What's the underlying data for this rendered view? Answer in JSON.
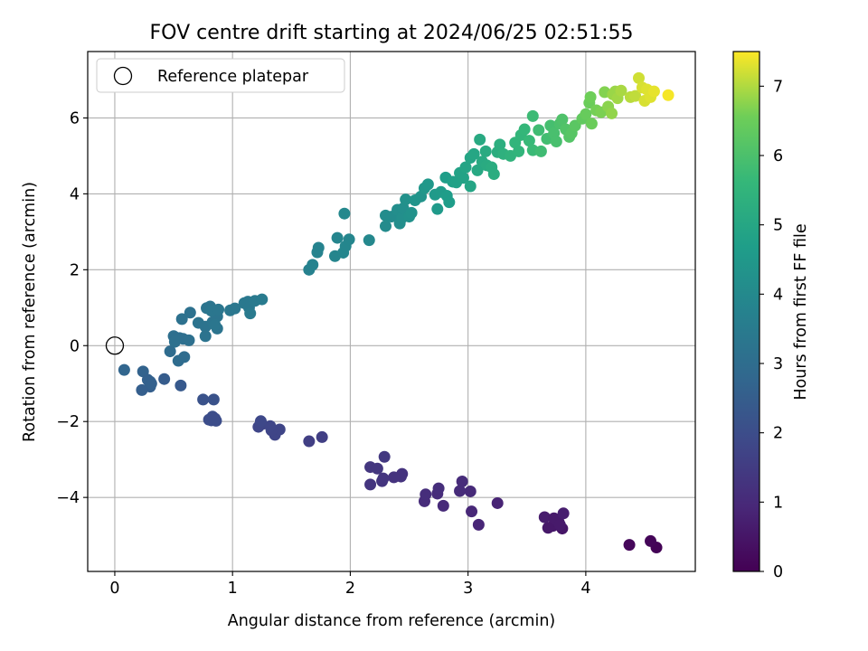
{
  "chart_data": {
    "type": "scatter",
    "title": "FOV centre drift starting at 2024/06/25 02:51:55",
    "xlabel": "Angular distance from reference (arcmin)",
    "ylabel": "Rotation from reference (arcmin)",
    "xlim": [
      -0.23,
      4.93
    ],
    "ylim": [
      -5.95,
      7.75
    ],
    "xticks": [
      0,
      1,
      2,
      3,
      4
    ],
    "yticks": [
      -4,
      -2,
      0,
      2,
      4,
      6
    ],
    "grid": true,
    "legend": {
      "position": "upper-left",
      "entries": [
        "Reference platepar"
      ]
    },
    "reference_point": {
      "x": 0,
      "y": 0
    },
    "colorbar": {
      "label": "Hours from first FF file",
      "colormap": "viridis",
      "range": [
        0,
        7.5
      ],
      "ticks": [
        0,
        1,
        2,
        3,
        4,
        5,
        6,
        7
      ]
    },
    "series": [
      {
        "name": "",
        "points": [
          {
            "x": 4.6,
            "y": -5.32,
            "c": 0.05
          },
          {
            "x": 4.55,
            "y": -5.15,
            "c": 0.1
          },
          {
            "x": 4.37,
            "y": -5.25,
            "c": 0.15
          },
          {
            "x": 3.8,
            "y": -4.82,
            "c": 0.5
          },
          {
            "x": 3.72,
            "y": -4.75,
            "c": 0.55
          },
          {
            "x": 3.77,
            "y": -4.65,
            "c": 0.6
          },
          {
            "x": 3.68,
            "y": -4.8,
            "c": 0.55
          },
          {
            "x": 3.65,
            "y": -4.52,
            "c": 0.65
          },
          {
            "x": 3.73,
            "y": -4.55,
            "c": 0.6
          },
          {
            "x": 3.81,
            "y": -4.42,
            "c": 0.7
          },
          {
            "x": 3.78,
            "y": -4.72,
            "c": 0.6
          },
          {
            "x": 3.09,
            "y": -4.72,
            "c": 0.9
          },
          {
            "x": 3.03,
            "y": -4.37,
            "c": 0.95
          },
          {
            "x": 3.25,
            "y": -4.15,
            "c": 0.85
          },
          {
            "x": 3.02,
            "y": -3.84,
            "c": 1.0
          },
          {
            "x": 2.93,
            "y": -3.83,
            "c": 1.05
          },
          {
            "x": 2.95,
            "y": -3.58,
            "c": 1.05
          },
          {
            "x": 2.79,
            "y": -4.22,
            "c": 1.0
          },
          {
            "x": 2.74,
            "y": -3.9,
            "c": 1.05
          },
          {
            "x": 2.75,
            "y": -3.76,
            "c": 1.1
          },
          {
            "x": 2.63,
            "y": -4.1,
            "c": 1.05
          },
          {
            "x": 2.64,
            "y": -3.92,
            "c": 1.1
          },
          {
            "x": 2.44,
            "y": -3.38,
            "c": 1.25
          },
          {
            "x": 2.43,
            "y": -3.45,
            "c": 1.25
          },
          {
            "x": 2.37,
            "y": -3.47,
            "c": 1.25
          },
          {
            "x": 2.27,
            "y": -3.57,
            "c": 1.3
          },
          {
            "x": 2.17,
            "y": -3.66,
            "c": 1.3
          },
          {
            "x": 2.28,
            "y": -3.5,
            "c": 1.3
          },
          {
            "x": 2.17,
            "y": -3.2,
            "c": 1.35
          },
          {
            "x": 2.23,
            "y": -3.24,
            "c": 1.35
          },
          {
            "x": 2.29,
            "y": -2.93,
            "c": 1.4
          },
          {
            "x": 1.76,
            "y": -2.41,
            "c": 1.6
          },
          {
            "x": 1.65,
            "y": -2.52,
            "c": 1.6
          },
          {
            "x": 1.36,
            "y": -2.35,
            "c": 1.75
          },
          {
            "x": 1.4,
            "y": -2.21,
            "c": 1.75
          },
          {
            "x": 1.33,
            "y": -2.23,
            "c": 1.75
          },
          {
            "x": 1.32,
            "y": -2.12,
            "c": 1.8
          },
          {
            "x": 1.25,
            "y": -2.07,
            "c": 1.8
          },
          {
            "x": 1.22,
            "y": -2.14,
            "c": 1.8
          },
          {
            "x": 1.24,
            "y": -1.99,
            "c": 1.85
          },
          {
            "x": 0.86,
            "y": -1.98,
            "c": 2.0
          },
          {
            "x": 0.82,
            "y": -1.97,
            "c": 2.0
          },
          {
            "x": 0.83,
            "y": -1.87,
            "c": 2.05
          },
          {
            "x": 0.8,
            "y": -1.95,
            "c": 2.0
          },
          {
            "x": 0.85,
            "y": -1.92,
            "c": 2.0
          },
          {
            "x": 0.84,
            "y": -1.42,
            "c": 2.15
          },
          {
            "x": 0.75,
            "y": -1.42,
            "c": 2.15
          },
          {
            "x": 0.56,
            "y": -1.05,
            "c": 2.35
          },
          {
            "x": 0.42,
            "y": -0.88,
            "c": 2.45
          },
          {
            "x": 0.3,
            "y": -1.08,
            "c": 2.55
          },
          {
            "x": 0.23,
            "y": -1.17,
            "c": 2.55
          },
          {
            "x": 0.3,
            "y": -0.95,
            "c": 2.6
          },
          {
            "x": 0.24,
            "y": -0.68,
            "c": 2.65
          },
          {
            "x": 0.28,
            "y": -0.9,
            "c": 2.6
          },
          {
            "x": 0.31,
            "y": -1.0,
            "c": 2.6
          },
          {
            "x": 0.08,
            "y": -0.64,
            "c": 2.75
          },
          {
            "x": 0.47,
            "y": -0.15,
            "c": 2.95
          },
          {
            "x": 0.54,
            "y": -0.4,
            "c": 2.95
          },
          {
            "x": 0.59,
            "y": -0.3,
            "c": 2.95
          },
          {
            "x": 0.55,
            "y": 0.2,
            "c": 3.05
          },
          {
            "x": 0.5,
            "y": 0.25,
            "c": 3.05
          },
          {
            "x": 0.58,
            "y": 0.18,
            "c": 3.05
          },
          {
            "x": 0.63,
            "y": 0.14,
            "c": 3.1
          },
          {
            "x": 0.51,
            "y": 0.1,
            "c": 3.1
          },
          {
            "x": 0.57,
            "y": 0.7,
            "c": 3.15
          },
          {
            "x": 0.64,
            "y": 0.87,
            "c": 3.15
          },
          {
            "x": 0.71,
            "y": 0.6,
            "c": 3.2
          },
          {
            "x": 0.77,
            "y": 0.5,
            "c": 3.2
          },
          {
            "x": 0.78,
            "y": 0.99,
            "c": 3.25
          },
          {
            "x": 0.81,
            "y": 1.03,
            "c": 3.25
          },
          {
            "x": 0.77,
            "y": 0.25,
            "c": 3.2
          },
          {
            "x": 0.83,
            "y": 0.62,
            "c": 3.25
          },
          {
            "x": 0.87,
            "y": 0.77,
            "c": 3.25
          },
          {
            "x": 0.87,
            "y": 0.45,
            "c": 3.25
          },
          {
            "x": 0.82,
            "y": 0.92,
            "c": 3.3
          },
          {
            "x": 0.85,
            "y": 0.55,
            "c": 3.3
          },
          {
            "x": 0.88,
            "y": 0.95,
            "c": 3.3
          },
          {
            "x": 0.98,
            "y": 0.93,
            "c": 3.35
          },
          {
            "x": 1.02,
            "y": 0.98,
            "c": 3.35
          },
          {
            "x": 1.1,
            "y": 1.12,
            "c": 3.4
          },
          {
            "x": 1.13,
            "y": 1.16,
            "c": 3.4
          },
          {
            "x": 1.14,
            "y": 1.0,
            "c": 3.4
          },
          {
            "x": 1.15,
            "y": 0.85,
            "c": 3.45
          },
          {
            "x": 1.19,
            "y": 1.18,
            "c": 3.45
          },
          {
            "x": 1.25,
            "y": 1.22,
            "c": 3.5
          },
          {
            "x": 1.65,
            "y": 2.0,
            "c": 3.7
          },
          {
            "x": 1.68,
            "y": 2.13,
            "c": 3.75
          },
          {
            "x": 1.72,
            "y": 2.46,
            "c": 3.8
          },
          {
            "x": 1.73,
            "y": 2.58,
            "c": 3.8
          },
          {
            "x": 1.87,
            "y": 2.36,
            "c": 3.85
          },
          {
            "x": 1.89,
            "y": 2.84,
            "c": 3.85
          },
          {
            "x": 1.94,
            "y": 2.45,
            "c": 3.9
          },
          {
            "x": 1.96,
            "y": 2.62,
            "c": 3.9
          },
          {
            "x": 1.99,
            "y": 2.8,
            "c": 3.9
          },
          {
            "x": 1.95,
            "y": 3.48,
            "c": 3.95
          },
          {
            "x": 2.16,
            "y": 2.78,
            "c": 3.95
          },
          {
            "x": 2.3,
            "y": 3.15,
            "c": 4.05
          },
          {
            "x": 2.3,
            "y": 3.43,
            "c": 4.1
          },
          {
            "x": 2.35,
            "y": 3.4,
            "c": 4.1
          },
          {
            "x": 2.4,
            "y": 3.58,
            "c": 4.15
          },
          {
            "x": 2.42,
            "y": 3.22,
            "c": 4.15
          },
          {
            "x": 2.44,
            "y": 3.37,
            "c": 4.2
          },
          {
            "x": 2.45,
            "y": 3.62,
            "c": 4.2
          },
          {
            "x": 2.47,
            "y": 3.85,
            "c": 4.25
          },
          {
            "x": 2.5,
            "y": 3.4,
            "c": 4.25
          },
          {
            "x": 2.52,
            "y": 3.5,
            "c": 4.3
          },
          {
            "x": 2.55,
            "y": 3.83,
            "c": 4.35
          },
          {
            "x": 2.6,
            "y": 3.93,
            "c": 4.35
          },
          {
            "x": 2.63,
            "y": 4.15,
            "c": 4.45
          },
          {
            "x": 2.66,
            "y": 4.25,
            "c": 4.5
          },
          {
            "x": 2.72,
            "y": 3.98,
            "c": 4.55
          },
          {
            "x": 2.74,
            "y": 3.6,
            "c": 4.55
          },
          {
            "x": 2.77,
            "y": 4.05,
            "c": 4.6
          },
          {
            "x": 2.82,
            "y": 3.95,
            "c": 4.65
          },
          {
            "x": 2.84,
            "y": 3.78,
            "c": 4.65
          },
          {
            "x": 2.81,
            "y": 4.43,
            "c": 4.7
          },
          {
            "x": 2.87,
            "y": 4.32,
            "c": 4.75
          },
          {
            "x": 2.9,
            "y": 4.3,
            "c": 4.8
          },
          {
            "x": 2.93,
            "y": 4.55,
            "c": 4.85
          },
          {
            "x": 2.96,
            "y": 4.42,
            "c": 4.85
          },
          {
            "x": 2.98,
            "y": 4.7,
            "c": 4.9
          },
          {
            "x": 3.02,
            "y": 4.95,
            "c": 4.95
          },
          {
            "x": 3.02,
            "y": 4.2,
            "c": 4.95
          },
          {
            "x": 3.05,
            "y": 5.05,
            "c": 5.0
          },
          {
            "x": 3.08,
            "y": 4.62,
            "c": 5.05
          },
          {
            "x": 3.1,
            "y": 5.43,
            "c": 5.1
          },
          {
            "x": 3.12,
            "y": 4.85,
            "c": 5.1
          },
          {
            "x": 3.15,
            "y": 5.12,
            "c": 5.15
          },
          {
            "x": 3.16,
            "y": 4.75,
            "c": 5.15
          },
          {
            "x": 3.2,
            "y": 4.7,
            "c": 5.2
          },
          {
            "x": 3.22,
            "y": 4.52,
            "c": 5.2
          },
          {
            "x": 3.25,
            "y": 5.1,
            "c": 5.25
          },
          {
            "x": 3.27,
            "y": 5.3,
            "c": 5.3
          },
          {
            "x": 3.3,
            "y": 5.05,
            "c": 5.35
          },
          {
            "x": 3.36,
            "y": 5.0,
            "c": 5.45
          },
          {
            "x": 3.4,
            "y": 5.35,
            "c": 5.5
          },
          {
            "x": 3.43,
            "y": 5.12,
            "c": 5.5
          },
          {
            "x": 3.45,
            "y": 5.55,
            "c": 5.55
          },
          {
            "x": 3.48,
            "y": 5.7,
            "c": 5.6
          },
          {
            "x": 3.52,
            "y": 5.4,
            "c": 5.65
          },
          {
            "x": 3.55,
            "y": 5.15,
            "c": 5.7
          },
          {
            "x": 3.55,
            "y": 6.05,
            "c": 5.75
          },
          {
            "x": 3.6,
            "y": 5.68,
            "c": 5.8
          },
          {
            "x": 3.62,
            "y": 5.12,
            "c": 5.8
          },
          {
            "x": 3.67,
            "y": 5.45,
            "c": 5.85
          },
          {
            "x": 3.7,
            "y": 5.8,
            "c": 5.9
          },
          {
            "x": 3.73,
            "y": 5.6,
            "c": 5.95
          },
          {
            "x": 3.75,
            "y": 5.38,
            "c": 5.95
          },
          {
            "x": 3.78,
            "y": 5.85,
            "c": 6.0
          },
          {
            "x": 3.8,
            "y": 5.96,
            "c": 6.05
          },
          {
            "x": 3.83,
            "y": 5.7,
            "c": 6.1
          },
          {
            "x": 3.86,
            "y": 5.5,
            "c": 6.15
          },
          {
            "x": 3.88,
            "y": 5.6,
            "c": 6.2
          },
          {
            "x": 3.91,
            "y": 5.8,
            "c": 6.25
          },
          {
            "x": 3.97,
            "y": 5.98,
            "c": 6.35
          },
          {
            "x": 4.0,
            "y": 6.1,
            "c": 6.45
          },
          {
            "x": 4.03,
            "y": 6.4,
            "c": 6.5
          },
          {
            "x": 4.05,
            "y": 5.85,
            "c": 6.5
          },
          {
            "x": 4.04,
            "y": 6.55,
            "c": 6.55
          },
          {
            "x": 4.09,
            "y": 6.2,
            "c": 6.6
          },
          {
            "x": 4.13,
            "y": 6.15,
            "c": 6.65
          },
          {
            "x": 4.16,
            "y": 6.68,
            "c": 6.7
          },
          {
            "x": 4.19,
            "y": 6.3,
            "c": 6.75
          },
          {
            "x": 4.22,
            "y": 6.12,
            "c": 6.8
          },
          {
            "x": 4.23,
            "y": 6.62,
            "c": 6.85
          },
          {
            "x": 4.25,
            "y": 6.7,
            "c": 6.85
          },
          {
            "x": 4.27,
            "y": 6.52,
            "c": 6.9
          },
          {
            "x": 4.3,
            "y": 6.72,
            "c": 6.95
          },
          {
            "x": 4.38,
            "y": 6.55,
            "c": 7.05
          },
          {
            "x": 4.42,
            "y": 6.58,
            "c": 7.1
          },
          {
            "x": 4.45,
            "y": 7.05,
            "c": 7.2
          },
          {
            "x": 4.48,
            "y": 6.8,
            "c": 7.25
          },
          {
            "x": 4.5,
            "y": 6.45,
            "c": 7.25
          },
          {
            "x": 4.52,
            "y": 6.75,
            "c": 7.3
          },
          {
            "x": 4.55,
            "y": 6.55,
            "c": 7.3
          },
          {
            "x": 4.58,
            "y": 6.7,
            "c": 7.35
          },
          {
            "x": 4.7,
            "y": 6.6,
            "c": 7.45
          }
        ]
      }
    ]
  }
}
